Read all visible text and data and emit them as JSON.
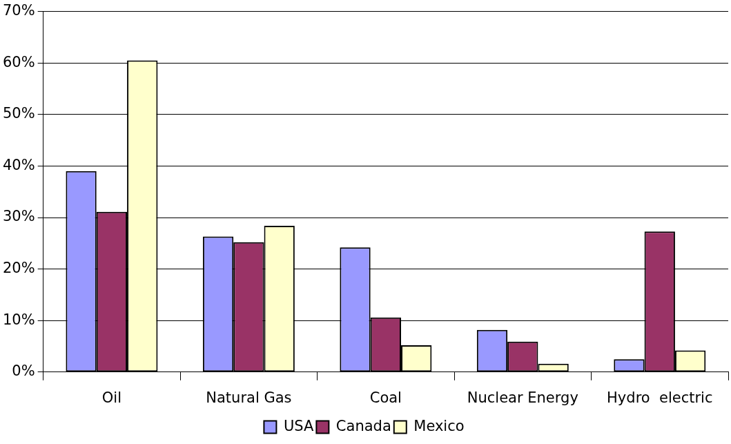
{
  "chart_data": {
    "type": "bar",
    "categories": [
      "Oil",
      "Natural Gas",
      "Coal",
      "Nuclear Energy",
      "Hydro  electric"
    ],
    "series": [
      {
        "name": "USA",
        "color": "#9999ff",
        "values": [
          39,
          26.3,
          24.2,
          8.2,
          2.5
        ]
      },
      {
        "name": "Canada",
        "color": "#993366",
        "values": [
          31.1,
          25.2,
          10.6,
          5.9,
          27.3
        ]
      },
      {
        "name": "Mexico",
        "color": "#ffffcc",
        "values": [
          60.5,
          28.4,
          5.2,
          1.6,
          4.2
        ]
      }
    ],
    "ylim": [
      0,
      70
    ],
    "yticks": [
      {
        "value": 0,
        "label": "0%"
      },
      {
        "value": 10,
        "label": "10%"
      },
      {
        "value": 20,
        "label": "20%"
      },
      {
        "value": 30,
        "label": "30%"
      },
      {
        "value": 40,
        "label": "40%"
      },
      {
        "value": 50,
        "label": "50%"
      },
      {
        "value": 60,
        "label": "60%"
      },
      {
        "value": 70,
        "label": "70%"
      }
    ],
    "grid": "y",
    "legend": "bottom"
  }
}
